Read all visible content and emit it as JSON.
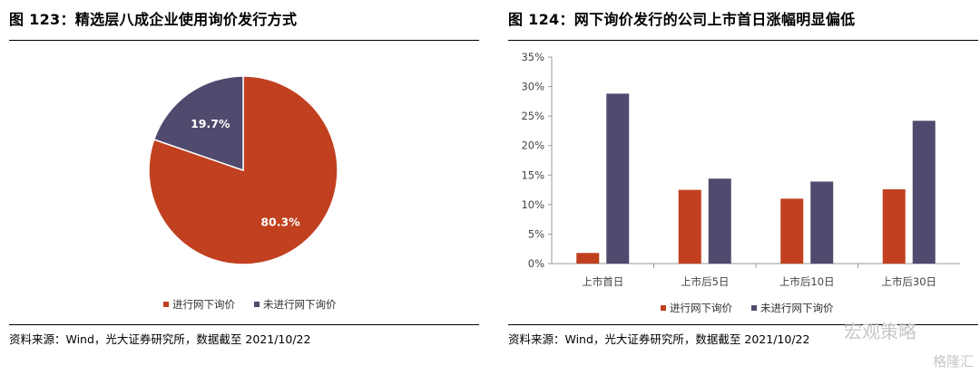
{
  "left": {
    "title": "图 123：精选层八成企业使用询价发行方式",
    "source": "资料来源：Wind，光大证券研究所，数据截至 2021/10/22"
  },
  "right": {
    "title": "图 124：网下询价发行的公司上市首日涨幅明显偏低",
    "source": "资料来源：Wind，光大证券研究所，数据截至 2021/10/22"
  },
  "watermark": {
    "account": "宏观策略",
    "brand": "格隆汇"
  },
  "colors": {
    "series1": "#c0401f",
    "series2": "#504a6e"
  },
  "chart_data": [
    {
      "type": "pie",
      "title": "",
      "labels": [
        "进行网下询价",
        "未进行网下询价"
      ],
      "values": [
        80.3,
        19.7
      ],
      "value_labels": [
        "80.3%",
        "19.7%"
      ],
      "legend": "bottom"
    },
    {
      "type": "bar",
      "title": "",
      "categories": [
        "上市首日",
        "上市后5日",
        "上市后10日",
        "上市后30日"
      ],
      "series": [
        {
          "name": "进行网下询价",
          "values": [
            1.8,
            12.5,
            11.0,
            12.6
          ]
        },
        {
          "name": "未进行网下询价",
          "values": [
            28.8,
            14.4,
            13.9,
            24.2
          ]
        }
      ],
      "ylim": [
        0,
        35
      ],
      "yticks": [
        "0%",
        "5%",
        "10%",
        "15%",
        "20%",
        "25%",
        "30%",
        "35%"
      ],
      "legend": "bottom",
      "grid": false
    }
  ]
}
